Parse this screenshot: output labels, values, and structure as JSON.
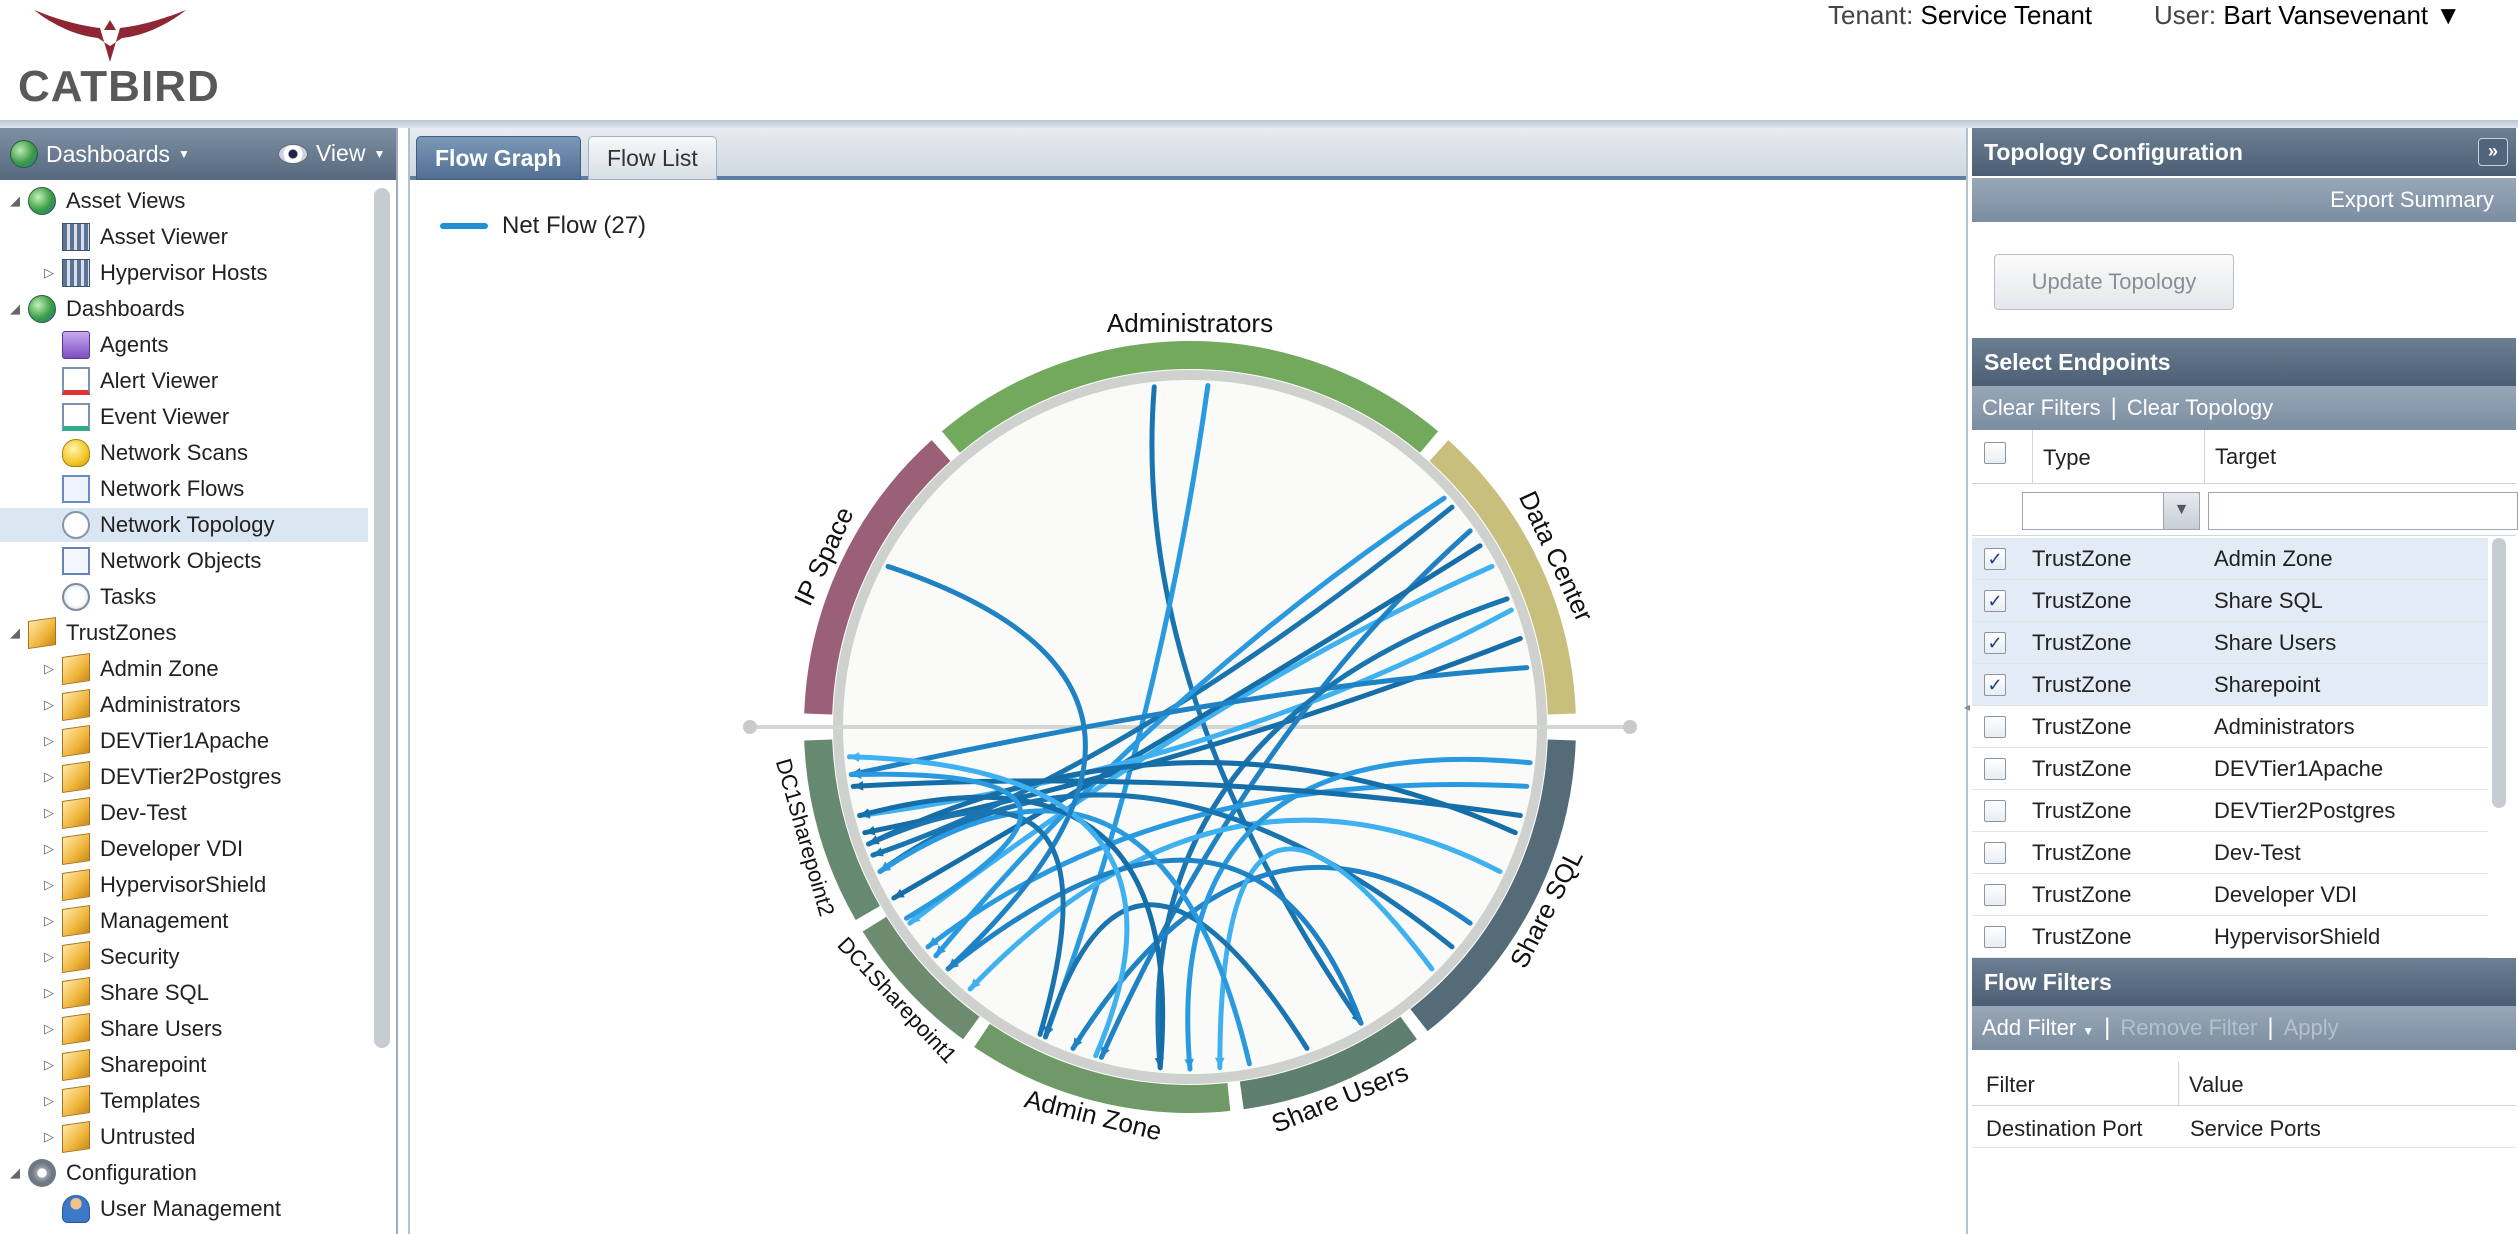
{
  "header": {
    "logo_text": "CATBIRD",
    "tenant_label": "Tenant:",
    "tenant_value": "Service Tenant",
    "user_label": "User:",
    "user_value": "Bart Vansevenant",
    "user_caret": "▼"
  },
  "left_panel": {
    "dashboards_menu": "Dashboards",
    "view_menu": "View",
    "tree": [
      {
        "label": "Asset Views",
        "icon": "globe-icon",
        "level": 0,
        "twisty": "◢"
      },
      {
        "label": "Asset Viewer",
        "icon": "building-icon",
        "level": 1,
        "twisty": ""
      },
      {
        "label": "Hypervisor Hosts",
        "icon": "building-icon",
        "level": 1,
        "twisty": "▷"
      },
      {
        "label": "Dashboards",
        "icon": "globe-icon",
        "level": 0,
        "twisty": "◢"
      },
      {
        "label": "Agents",
        "icon": "agent-icon",
        "level": 1,
        "twisty": ""
      },
      {
        "label": "Alert Viewer",
        "icon": "alert-doc-icon",
        "level": 1,
        "twisty": ""
      },
      {
        "label": "Event Viewer",
        "icon": "event-doc-icon",
        "level": 1,
        "twisty": ""
      },
      {
        "label": "Network Scans",
        "icon": "bulb-icon",
        "level": 1,
        "twisty": ""
      },
      {
        "label": "Network Flows",
        "icon": "flow-icon",
        "level": 1,
        "twisty": ""
      },
      {
        "label": "Network Topology",
        "icon": "topology-icon",
        "level": 1,
        "twisty": "",
        "selected": true
      },
      {
        "label": "Network Objects",
        "icon": "objects-icon",
        "level": 1,
        "twisty": ""
      },
      {
        "label": "Tasks",
        "icon": "clock-icon",
        "level": 1,
        "twisty": ""
      },
      {
        "label": "TrustZones",
        "icon": "box-icon",
        "level": 0,
        "twisty": "◢"
      },
      {
        "label": "Admin Zone",
        "icon": "box-icon",
        "level": 1,
        "twisty": "▷"
      },
      {
        "label": "Administrators",
        "icon": "box-icon",
        "level": 1,
        "twisty": "▷"
      },
      {
        "label": "DEVTier1Apache",
        "icon": "box-icon",
        "level": 1,
        "twisty": "▷"
      },
      {
        "label": "DEVTier2Postgres",
        "icon": "box-icon",
        "level": 1,
        "twisty": "▷"
      },
      {
        "label": "Dev-Test",
        "icon": "box-icon",
        "level": 1,
        "twisty": "▷"
      },
      {
        "label": "Developer VDI",
        "icon": "box-icon",
        "level": 1,
        "twisty": "▷"
      },
      {
        "label": "HypervisorShield",
        "icon": "box-icon",
        "level": 1,
        "twisty": "▷"
      },
      {
        "label": "Management",
        "icon": "box-icon",
        "level": 1,
        "twisty": "▷"
      },
      {
        "label": "Security",
        "icon": "box-icon",
        "level": 1,
        "twisty": "▷"
      },
      {
        "label": "Share SQL",
        "icon": "box-icon",
        "level": 1,
        "twisty": "▷"
      },
      {
        "label": "Share Users",
        "icon": "box-icon",
        "level": 1,
        "twisty": "▷"
      },
      {
        "label": "Sharepoint",
        "icon": "box-icon",
        "level": 1,
        "twisty": "▷"
      },
      {
        "label": "Templates",
        "icon": "box-icon",
        "level": 1,
        "twisty": "▷"
      },
      {
        "label": "Untrusted",
        "icon": "box-icon",
        "level": 1,
        "twisty": "▷"
      },
      {
        "label": "Configuration",
        "icon": "gear-icon",
        "level": 0,
        "twisty": "◢"
      },
      {
        "label": "User Management",
        "icon": "users-icon",
        "level": 1,
        "twisty": ""
      }
    ]
  },
  "center": {
    "tabs": [
      {
        "label": "Flow Graph",
        "active": true
      },
      {
        "label": "Flow List",
        "active": false
      }
    ],
    "legend": {
      "label": "Net Flow (27)",
      "color": "#1f8fd6"
    },
    "chord": {
      "segments": [
        {
          "label": "Administrators",
          "color": "#72a95c"
        },
        {
          "label": "Data Center",
          "color": "#c8bf7c"
        },
        {
          "label": "Share SQL",
          "color": "#546b78"
        },
        {
          "label": "Share Users",
          "color": "#5e7e6e"
        },
        {
          "label": "Admin Zone",
          "color": "#6f9a68"
        },
        {
          "label": "DC1Sharepoint1",
          "color": "#6d8c6f"
        },
        {
          "label": "DC1Sharepoint2",
          "color": "#668a70"
        },
        {
          "label": "IP Space",
          "color": "#9a6078"
        }
      ],
      "flow_count": 27,
      "flow_colors": [
        "#1a74b0",
        "#2a9ae0",
        "#156ea8",
        "#3fb0f0",
        "#1f82c4"
      ]
    }
  },
  "right_panel": {
    "topology_title": "Topology Configuration",
    "collapse_icon": "»",
    "export_summary": "Export Summary",
    "update_button": "Update Topology",
    "select_endpoints": "Select Endpoints",
    "clear_filters": "Clear Filters",
    "sep": "|",
    "clear_topology": "Clear Topology",
    "columns": {
      "type": "Type",
      "target": "Target"
    },
    "endpoints": [
      {
        "type": "TrustZone",
        "target": "Admin Zone",
        "checked": true
      },
      {
        "type": "TrustZone",
        "target": "Share SQL",
        "checked": true
      },
      {
        "type": "TrustZone",
        "target": "Share Users",
        "checked": true
      },
      {
        "type": "TrustZone",
        "target": "Sharepoint",
        "checked": true
      },
      {
        "type": "TrustZone",
        "target": "Administrators",
        "checked": false
      },
      {
        "type": "TrustZone",
        "target": "DEVTier1Apache",
        "checked": false
      },
      {
        "type": "TrustZone",
        "target": "DEVTier2Postgres",
        "checked": false
      },
      {
        "type": "TrustZone",
        "target": "Dev-Test",
        "checked": false
      },
      {
        "type": "TrustZone",
        "target": "Developer VDI",
        "checked": false
      },
      {
        "type": "TrustZone",
        "target": "HypervisorShield",
        "checked": false
      }
    ],
    "flow_filters_title": "Flow Filters",
    "add_filter": "Add Filter",
    "remove_filter": "Remove Filter",
    "apply": "Apply",
    "filter_columns": {
      "filter": "Filter",
      "value": "Value"
    },
    "filters": [
      {
        "filter": "Destination Port",
        "value": "Service Ports"
      }
    ]
  }
}
